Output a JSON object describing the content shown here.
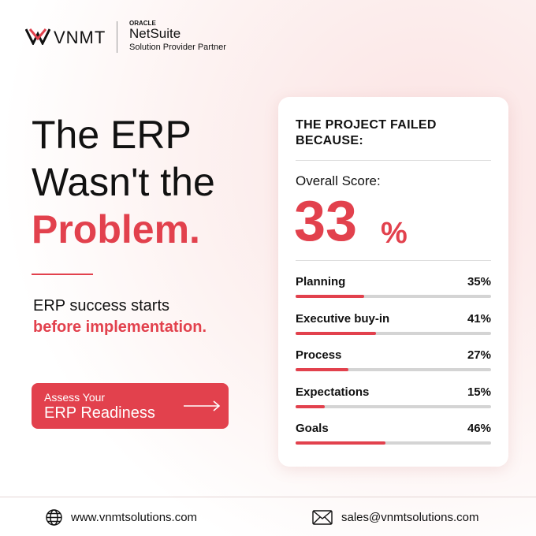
{
  "header": {
    "logo": "VNMT",
    "partner_brand_top": "ORACLE",
    "partner_brand": "NetSuite",
    "partner_label": "Solution Provider Partner"
  },
  "headline": {
    "line1": "The ERP",
    "line2": "Wasn't the",
    "line3": "Problem."
  },
  "subtext": {
    "line1": "ERP success starts",
    "line2": "before implementation."
  },
  "button": {
    "line1": "Assess Your",
    "line2": "ERP Readiness"
  },
  "card": {
    "title_line1": "THE PROJECT FAILED",
    "title_line2": "BECAUSE:",
    "score_label": "Overall Score:",
    "score": 33,
    "score_unit": "%",
    "xlim": [
      0,
      100
    ],
    "items": [
      {
        "label": "Planning",
        "value": 35,
        "value_label": "35%"
      },
      {
        "label": "Executive buy-in",
        "value": 41,
        "value_label": "41%"
      },
      {
        "label": "Process",
        "value": 27,
        "value_label": "27%"
      },
      {
        "label": "Expectations",
        "value": 15,
        "value_label": "15%"
      },
      {
        "label": "Goals",
        "value": 46,
        "value_label": "46%"
      }
    ]
  },
  "footer": {
    "website": "www.vnmtsolutions.com",
    "email": "sales@vnmtsolutions.com"
  }
}
